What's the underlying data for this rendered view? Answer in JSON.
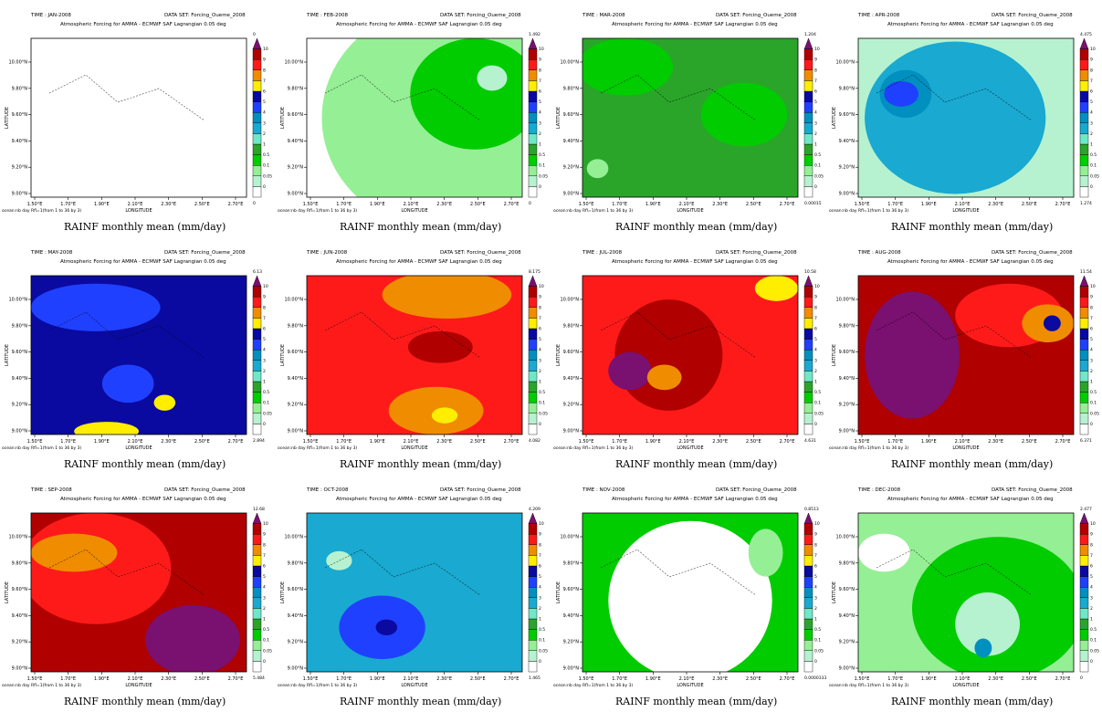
{
  "dataset_label": "DATA SET: Forcing_Oueme_2008",
  "subtitle": "Atmospheric Forcing for AMMA - ECMWF SAF Lagrangian 0.05 deg",
  "xlabel": "LONGITUDE",
  "ylabel": "LATITUDE",
  "footer_note": "ocean:nb day Rfl=1(from 1 to 36 by 3)",
  "caption": "RAINF monthly mean (mm/day)",
  "colorbar": {
    "labels": [
      "0",
      "0.05",
      "0.1",
      "0.5",
      "1",
      "2",
      "3",
      "4",
      "5",
      "6",
      "7",
      "8",
      "9",
      "10"
    ],
    "colors": [
      "#ffffff",
      "#b6f2d0",
      "#95ef95",
      "#00cc00",
      "#2aa52a",
      "#6fe8c7",
      "#19a9d1",
      "#0090c0",
      "#2040ff",
      "#0a0aa0",
      "#ffee00",
      "#f08c00",
      "#ff1a1a",
      "#b00000",
      "#7a1070"
    ]
  },
  "chart_data": [
    {
      "type": "heatmap",
      "time": "TIME : JAN-2008",
      "min": "0",
      "max": "0",
      "base": "#ffffff",
      "blobs": []
    },
    {
      "type": "heatmap",
      "time": "TIME : FEB-2008",
      "min": "0",
      "max": "1.492",
      "base": "#ffffff",
      "blobs": [
        {
          "c": "#95ef95",
          "x": 0.62,
          "y": 0.5,
          "rx": 0.55,
          "ry": 0.7
        },
        {
          "c": "#00cc00",
          "x": 0.78,
          "y": 0.35,
          "rx": 0.3,
          "ry": 0.35
        },
        {
          "c": "#b6f2d0",
          "x": 0.86,
          "y": 0.25,
          "rx": 0.07,
          "ry": 0.08
        }
      ]
    },
    {
      "type": "heatmap",
      "time": "TIME : MAR-2008",
      "min": "0.00015",
      "max": "1.204",
      "base": "#2aa52a",
      "blobs": [
        {
          "c": "#00cc00",
          "x": 0.2,
          "y": 0.18,
          "rx": 0.22,
          "ry": 0.18
        },
        {
          "c": "#00cc00",
          "x": 0.75,
          "y": 0.48,
          "rx": 0.2,
          "ry": 0.2
        },
        {
          "c": "#95ef95",
          "x": 0.07,
          "y": 0.82,
          "rx": 0.05,
          "ry": 0.06
        }
      ]
    },
    {
      "type": "heatmap",
      "time": "TIME : APR-2008",
      "min": "1.274",
      "max": "4.475",
      "base": "#b6f2d0",
      "blobs": [
        {
          "c": "#19a9d1",
          "x": 0.45,
          "y": 0.5,
          "rx": 0.42,
          "ry": 0.48
        },
        {
          "c": "#0090c0",
          "x": 0.22,
          "y": 0.35,
          "rx": 0.12,
          "ry": 0.15
        },
        {
          "c": "#2040ff",
          "x": 0.2,
          "y": 0.35,
          "rx": 0.08,
          "ry": 0.08
        }
      ]
    },
    {
      "type": "heatmap",
      "time": "TIME : MAY-2008",
      "min": "2.894",
      "max": "6.13",
      "base": "#0a0aa0",
      "blobs": [
        {
          "c": "#2040ff",
          "x": 0.3,
          "y": 0.2,
          "rx": 0.3,
          "ry": 0.15
        },
        {
          "c": "#2040ff",
          "x": 0.45,
          "y": 0.68,
          "rx": 0.12,
          "ry": 0.12
        },
        {
          "c": "#ffee00",
          "x": 0.35,
          "y": 0.98,
          "rx": 0.15,
          "ry": 0.06
        },
        {
          "c": "#ffee00",
          "x": 0.62,
          "y": 0.8,
          "rx": 0.05,
          "ry": 0.05
        }
      ]
    },
    {
      "type": "heatmap",
      "time": "TIME : JUN-2008",
      "min": "4.082",
      "max": "8.175",
      "base": "#ff1a1a",
      "blobs": [
        {
          "c": "#f08c00",
          "x": 0.65,
          "y": 0.12,
          "rx": 0.3,
          "ry": 0.15
        },
        {
          "c": "#b00000",
          "x": 0.62,
          "y": 0.45,
          "rx": 0.15,
          "ry": 0.1
        },
        {
          "c": "#f08c00",
          "x": 0.6,
          "y": 0.85,
          "rx": 0.22,
          "ry": 0.15
        },
        {
          "c": "#ffee00",
          "x": 0.64,
          "y": 0.88,
          "rx": 0.06,
          "ry": 0.05
        }
      ]
    },
    {
      "type": "heatmap",
      "time": "TIME : JUL-2008",
      "min": "4.631",
      "max": "10.58",
      "base": "#ff1a1a",
      "blobs": [
        {
          "c": "#b00000",
          "x": 0.4,
          "y": 0.5,
          "rx": 0.25,
          "ry": 0.35
        },
        {
          "c": "#7a1070",
          "x": 0.22,
          "y": 0.6,
          "rx": 0.1,
          "ry": 0.12
        },
        {
          "c": "#f08c00",
          "x": 0.38,
          "y": 0.64,
          "rx": 0.08,
          "ry": 0.08
        },
        {
          "c": "#ffee00",
          "x": 0.9,
          "y": 0.08,
          "rx": 0.1,
          "ry": 0.08
        }
      ]
    },
    {
      "type": "heatmap",
      "time": "TIME : AUG-2008",
      "min": "6.371",
      "max": "11.54",
      "base": "#b00000",
      "blobs": [
        {
          "c": "#7a1070",
          "x": 0.25,
          "y": 0.5,
          "rx": 0.22,
          "ry": 0.4
        },
        {
          "c": "#ff1a1a",
          "x": 0.7,
          "y": 0.25,
          "rx": 0.25,
          "ry": 0.2
        },
        {
          "c": "#f08c00",
          "x": 0.88,
          "y": 0.3,
          "rx": 0.12,
          "ry": 0.12
        },
        {
          "c": "#0a0aa0",
          "x": 0.9,
          "y": 0.3,
          "rx": 0.04,
          "ry": 0.05
        }
      ]
    },
    {
      "type": "heatmap",
      "time": "TIME : SEP-2008",
      "min": "5.484",
      "max": "12.68",
      "base": "#b00000",
      "blobs": [
        {
          "c": "#ff1a1a",
          "x": 0.3,
          "y": 0.35,
          "rx": 0.35,
          "ry": 0.35
        },
        {
          "c": "#f08c00",
          "x": 0.2,
          "y": 0.25,
          "rx": 0.2,
          "ry": 0.12
        },
        {
          "c": "#7a1070",
          "x": 0.75,
          "y": 0.8,
          "rx": 0.22,
          "ry": 0.22
        }
      ]
    },
    {
      "type": "heatmap",
      "time": "TIME : OCT-2008",
      "min": "1.465",
      "max": "4.209",
      "base": "#19a9d1",
      "blobs": [
        {
          "c": "#2040ff",
          "x": 0.35,
          "y": 0.72,
          "rx": 0.2,
          "ry": 0.2
        },
        {
          "c": "#0a0aa0",
          "x": 0.37,
          "y": 0.72,
          "rx": 0.05,
          "ry": 0.05
        },
        {
          "c": "#b6f2d0",
          "x": 0.15,
          "y": 0.3,
          "rx": 0.06,
          "ry": 0.06
        }
      ]
    },
    {
      "type": "heatmap",
      "time": "TIME : NOV-2008",
      "min": "0.0000333",
      "max": "0.8513",
      "base": "#00cc00",
      "blobs": [
        {
          "c": "#ffffff",
          "x": 0.5,
          "y": 0.55,
          "rx": 0.38,
          "ry": 0.5
        },
        {
          "c": "#95ef95",
          "x": 0.85,
          "y": 0.25,
          "rx": 0.08,
          "ry": 0.15
        }
      ]
    },
    {
      "type": "heatmap",
      "time": "TIME : DEC-2008",
      "min": "0",
      "max": "2.477",
      "base": "#95ef95",
      "blobs": [
        {
          "c": "#00cc00",
          "x": 0.65,
          "y": 0.6,
          "rx": 0.4,
          "ry": 0.45
        },
        {
          "c": "#b6f2d0",
          "x": 0.6,
          "y": 0.7,
          "rx": 0.15,
          "ry": 0.2
        },
        {
          "c": "#0090c0",
          "x": 0.58,
          "y": 0.85,
          "rx": 0.04,
          "ry": 0.06
        },
        {
          "c": "#ffffff",
          "x": 0.12,
          "y": 0.25,
          "rx": 0.12,
          "ry": 0.12
        }
      ]
    }
  ],
  "x_ticks": [
    "1.50°E",
    "1.70°E",
    "1.90°E",
    "2.10°E",
    "2.30°E",
    "2.50°E",
    "2.70°E"
  ],
  "y_ticks": [
    "10.00°N",
    "9.80°N",
    "9.60°N",
    "9.40°N",
    "9.20°N",
    "9.00°N"
  ]
}
